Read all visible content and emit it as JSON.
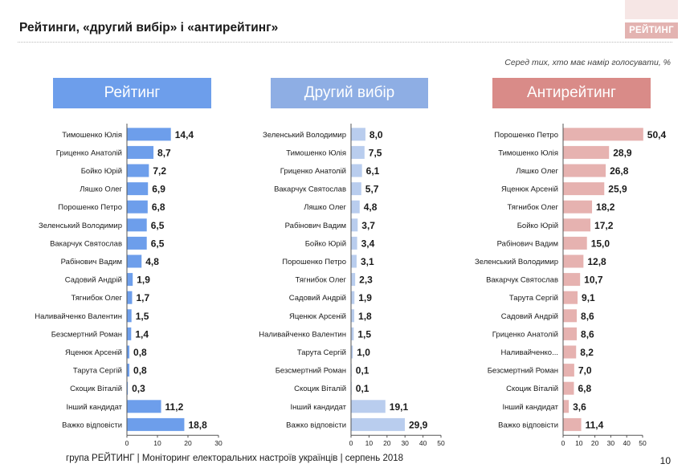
{
  "title": "Рейтинги, «другий вибір» і «антирейтинг»",
  "logo": "РЕЙТИНГ",
  "note": "Серед тих, хто має намір голосувати, %",
  "footer": "група РЕЙТИНГ |  Моніторинг електоральних настроїв українців | серпень  2018",
  "page_number": "10",
  "colors": {
    "rating_header": "#6d9eeb",
    "rating_bar": "#6d9eeb",
    "second_header": "#8eaee4",
    "second_bar": "#b9cdee",
    "anti_header": "#d98b88",
    "anti_bar": "#e6b2b0"
  },
  "chart_data": [
    {
      "type": "bar",
      "orientation": "horizontal",
      "title": "Рейтинг",
      "categories": [
        "Тимошенко Юлія",
        "Гриценко Анатолій",
        "Бойко Юрій",
        "Ляшко Олег",
        "Порошенко Петро",
        "Зеленський Володимир",
        "Вакарчук Святослав",
        "Рабінович Вадим",
        "Садовий Андрій",
        "Тягнибок Олег",
        "Наливайченко Валентин",
        "Безсмертний Роман",
        "Яценюк Арсеній",
        "Тарута Сергій",
        "Скоцик Віталій",
        "Інший кандидат",
        "Важко відповісти"
      ],
      "values": [
        14.4,
        8.7,
        7.2,
        6.9,
        6.8,
        6.5,
        6.5,
        4.8,
        1.9,
        1.7,
        1.5,
        1.4,
        0.8,
        0.8,
        0.3,
        11.2,
        18.8
      ],
      "value_labels": [
        "14,4",
        "8,7",
        "7,2",
        "6,9",
        "6,8",
        "6,5",
        "6,5",
        "4,8",
        "1,9",
        "1,7",
        "1,5",
        "1,4",
        "0,8",
        "0,8",
        "0,3",
        "11,2",
        "18,8"
      ],
      "xlim": [
        0,
        30
      ],
      "xticks": [
        "0",
        "10",
        "20",
        "30"
      ]
    },
    {
      "type": "bar",
      "orientation": "horizontal",
      "title": "Другий вибір",
      "categories": [
        "Зеленський Володимир",
        "Тимошенко Юлія",
        "Гриценко Анатолій",
        "Вакарчук Святослав",
        "Ляшко Олег",
        "Рабінович Вадим",
        "Бойко Юрій",
        "Порошенко Петро",
        "Тягнибок Олег",
        "Садовий Андрій",
        "Яценюк Арсеній",
        "Наливайченко Валентин",
        "Тарута Сергій",
        "Безсмертний Роман",
        "Скоцик Віталій",
        "Інший кандидат",
        "Важко відповісти"
      ],
      "values": [
        8.0,
        7.5,
        6.1,
        5.7,
        4.8,
        3.7,
        3.4,
        3.1,
        2.3,
        1.9,
        1.8,
        1.5,
        1.0,
        0.1,
        0.1,
        19.1,
        29.9
      ],
      "value_labels": [
        "8,0",
        "7,5",
        "6,1",
        "5,7",
        "4,8",
        "3,7",
        "3,4",
        "3,1",
        "2,3",
        "1,9",
        "1,8",
        "1,5",
        "1,0",
        "0,1",
        "0,1",
        "19,1",
        "29,9"
      ],
      "xlim": [
        0,
        50
      ],
      "xticks": [
        "0",
        "10",
        "20",
        "30",
        "40",
        "50"
      ]
    },
    {
      "type": "bar",
      "orientation": "horizontal",
      "title": "Антирейтинг",
      "categories": [
        "Порошенко Петро",
        "Тимошенко Юлія",
        "Ляшко Олег",
        "Яценюк Арсеній",
        "Тягнибок Олег",
        "Бойко Юрій",
        "Рабінович Вадим",
        "Зеленський Володимир",
        "Вакарчук Святослав",
        "Тарута Сергій",
        "Садовий Андрій",
        "Гриценко Анатолій",
        "Наливайченко...",
        "Безсмертний Роман",
        "Скоцик Віталій",
        "Інший кандидат",
        "Важко відповісти"
      ],
      "values": [
        50.4,
        28.9,
        26.8,
        25.9,
        18.2,
        17.2,
        15.0,
        12.8,
        10.7,
        9.1,
        8.6,
        8.6,
        8.2,
        7.0,
        6.8,
        3.6,
        11.4
      ],
      "value_labels": [
        "50,4",
        "28,9",
        "26,8",
        "25,9",
        "18,2",
        "17,2",
        "15,0",
        "12,8",
        "10,7",
        "9,1",
        "8,6",
        "8,6",
        "8,2",
        "7,0",
        "6,8",
        "3,6",
        "11,4"
      ],
      "xlim": [
        0,
        50
      ],
      "xticks": [
        "0",
        "10",
        "20",
        "30",
        "40",
        "50"
      ]
    }
  ]
}
